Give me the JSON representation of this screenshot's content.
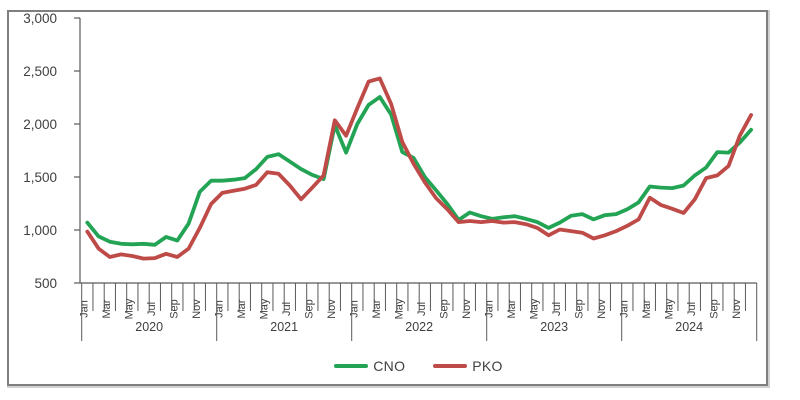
{
  "chart_data": {
    "type": "line",
    "title": "",
    "xlabel": "",
    "ylabel": "",
    "ylim": [
      500,
      3000
    ],
    "y_tick_labels": [
      "500",
      "1,000",
      "1,500",
      "2,000",
      "2,500",
      "3,000"
    ],
    "y_tick_values": [
      500,
      1000,
      1500,
      2000,
      2500,
      3000
    ],
    "years": [
      "2020",
      "2021",
      "2022",
      "2023",
      "2024"
    ],
    "month_tick_labels": [
      "Jan",
      "Mar",
      "May",
      "Jul",
      "Sep",
      "Nov"
    ],
    "months_per_year": 12,
    "grid": false,
    "legend_position": "bottom",
    "series": [
      {
        "name": "CNO",
        "color": "#23A455",
        "values": [
          1070,
          940,
          890,
          870,
          865,
          870,
          860,
          935,
          900,
          1060,
          1360,
          1465,
          1465,
          1475,
          1490,
          1575,
          1690,
          1715,
          1645,
          1575,
          1520,
          1480,
          1990,
          1730,
          2000,
          2180,
          2255,
          2090,
          1735,
          1680,
          1500,
          1375,
          1245,
          1095,
          1165,
          1130,
          1105,
          1120,
          1130,
          1105,
          1075,
          1020,
          1070,
          1135,
          1150,
          1100,
          1140,
          1150,
          1195,
          1260,
          1410,
          1400,
          1395,
          1420,
          1515,
          1590,
          1735,
          1730,
          1825,
          1945
        ]
      },
      {
        "name": "PKO",
        "color": "#BE4B48",
        "values": [
          985,
          825,
          745,
          770,
          755,
          730,
          735,
          775,
          745,
          825,
          1020,
          1245,
          1350,
          1370,
          1390,
          1425,
          1545,
          1530,
          1420,
          1290,
          1400,
          1515,
          2035,
          1890,
          2150,
          2400,
          2430,
          2190,
          1830,
          1625,
          1450,
          1300,
          1195,
          1075,
          1085,
          1075,
          1085,
          1070,
          1075,
          1055,
          1020,
          950,
          1005,
          990,
          975,
          920,
          950,
          990,
          1040,
          1100,
          1305,
          1235,
          1200,
          1160,
          1290,
          1490,
          1515,
          1605,
          1890,
          2085
        ]
      }
    ]
  },
  "colors": {
    "axis": "#595959",
    "label_text": "#404040",
    "frame_border": "#7f7f7f"
  }
}
